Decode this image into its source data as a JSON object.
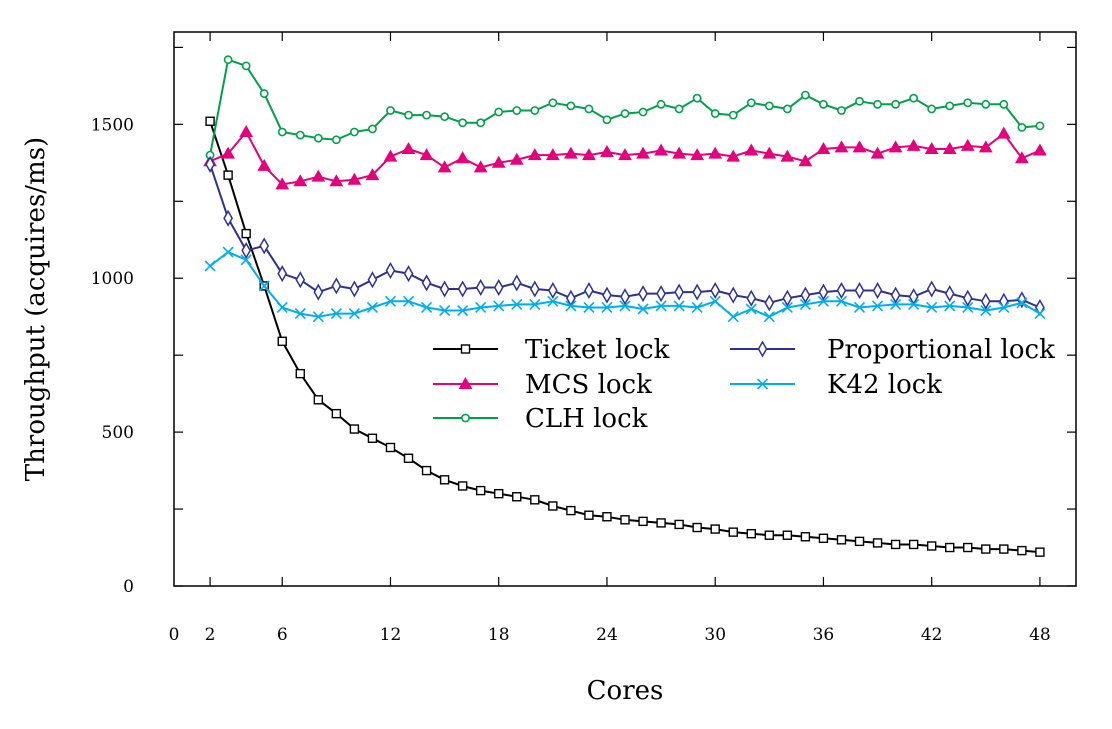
{
  "chart_data": {
    "type": "line",
    "title": "",
    "xlabel": "Cores",
    "ylabel": "Throughput (acquires/ms)",
    "xlim": [
      0,
      50
    ],
    "ylim": [
      0,
      1800
    ],
    "xticks": [
      0,
      2,
      6,
      12,
      18,
      24,
      30,
      36,
      42,
      48
    ],
    "yticks": [
      0,
      500,
      1000,
      1500
    ],
    "grid": false,
    "legend_position": "center-right",
    "x": [
      2,
      3,
      4,
      5,
      6,
      7,
      8,
      9,
      10,
      11,
      12,
      13,
      14,
      15,
      16,
      17,
      18,
      19,
      20,
      21,
      22,
      23,
      24,
      25,
      26,
      27,
      28,
      29,
      30,
      31,
      32,
      33,
      34,
      35,
      36,
      37,
      38,
      39,
      40,
      41,
      42,
      43,
      44,
      45,
      46,
      47,
      48
    ],
    "series": [
      {
        "name": "Ticket lock",
        "color": "#000000",
        "marker": "square",
        "values": [
          1510,
          1335,
          1145,
          975,
          795,
          690,
          605,
          560,
          510,
          480,
          450,
          415,
          375,
          345,
          325,
          310,
          300,
          290,
          280,
          260,
          245,
          230,
          225,
          215,
          210,
          205,
          200,
          190,
          185,
          175,
          170,
          165,
          165,
          160,
          155,
          150,
          145,
          140,
          135,
          135,
          130,
          125,
          125,
          120,
          120,
          115,
          110
        ]
      },
      {
        "name": "MCS lock",
        "color": "#e5007e",
        "marker": "triangle",
        "values": [
          1380,
          1405,
          1475,
          1365,
          1305,
          1315,
          1330,
          1315,
          1320,
          1335,
          1395,
          1420,
          1400,
          1360,
          1390,
          1360,
          1375,
          1385,
          1400,
          1400,
          1405,
          1400,
          1410,
          1400,
          1405,
          1415,
          1405,
          1400,
          1405,
          1395,
          1415,
          1405,
          1395,
          1380,
          1420,
          1425,
          1425,
          1405,
          1425,
          1430,
          1420,
          1420,
          1430,
          1425,
          1470,
          1390,
          1415
        ]
      },
      {
        "name": "CLH lock",
        "color": "#00a14b",
        "marker": "circle",
        "values": [
          1400,
          1710,
          1690,
          1600,
          1475,
          1465,
          1455,
          1450,
          1475,
          1485,
          1545,
          1530,
          1530,
          1525,
          1505,
          1505,
          1540,
          1545,
          1545,
          1570,
          1560,
          1550,
          1515,
          1535,
          1540,
          1565,
          1550,
          1585,
          1535,
          1530,
          1570,
          1560,
          1550,
          1595,
          1565,
          1545,
          1575,
          1565,
          1565,
          1585,
          1550,
          1560,
          1570,
          1565,
          1565,
          1490,
          1495
        ]
      },
      {
        "name": "Proportional lock",
        "color": "#2e3192",
        "marker": "diamond",
        "values": [
          1370,
          1195,
          1090,
          1105,
          1015,
          995,
          955,
          975,
          965,
          995,
          1025,
          1015,
          985,
          965,
          965,
          970,
          970,
          985,
          965,
          960,
          935,
          960,
          945,
          940,
          950,
          950,
          955,
          955,
          960,
          945,
          935,
          920,
          935,
          945,
          955,
          960,
          960,
          960,
          945,
          940,
          965,
          950,
          935,
          925,
          925,
          930,
          905
        ]
      },
      {
        "name": "K42 lock",
        "color": "#00aeef",
        "marker": "x",
        "values": [
          1040,
          1085,
          1060,
          975,
          905,
          885,
          875,
          885,
          885,
          905,
          925,
          925,
          905,
          895,
          895,
          905,
          910,
          915,
          915,
          925,
          910,
          905,
          905,
          910,
          900,
          910,
          910,
          905,
          925,
          875,
          900,
          875,
          905,
          915,
          925,
          925,
          905,
          910,
          915,
          915,
          905,
          910,
          905,
          895,
          905,
          920,
          885
        ]
      }
    ]
  }
}
